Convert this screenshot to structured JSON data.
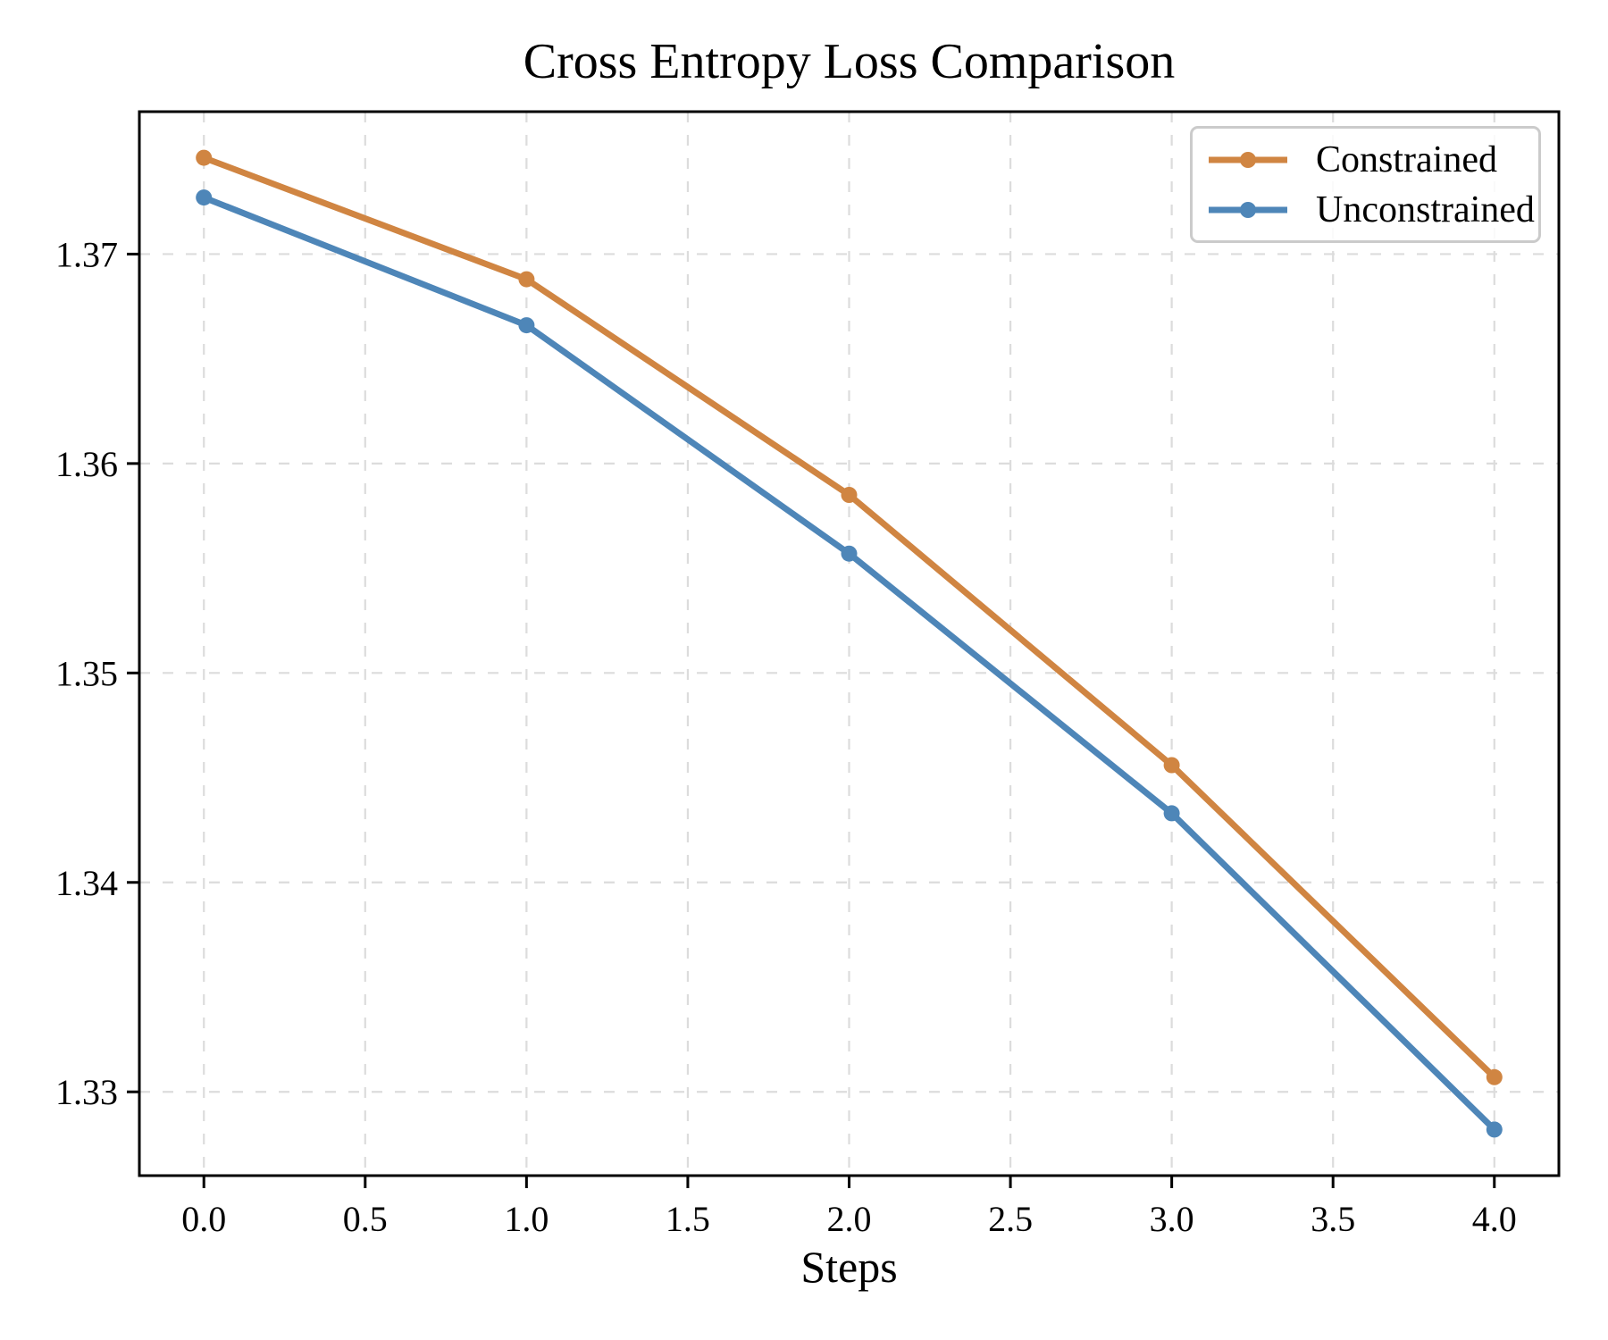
{
  "figure": {
    "background": "#FFFFFF",
    "axis_color": "#000000"
  },
  "chart_data": {
    "type": "line",
    "title": "Cross Entropy Loss Comparison",
    "xlabel": "Steps",
    "ylabel": "",
    "x": [
      0,
      1,
      2,
      3,
      4
    ],
    "series": [
      {
        "name": "Constrained",
        "color": "#D08542",
        "marker": "circle",
        "values": [
          1.3746,
          1.3688,
          1.3585,
          1.3456,
          1.3307
        ]
      },
      {
        "name": "Unconstrained",
        "color": "#4E86B8",
        "marker": "circle",
        "values": [
          1.3727,
          1.3666,
          1.3557,
          1.3433,
          1.3282
        ]
      }
    ],
    "xlim": [
      -0.2,
      4.2
    ],
    "ylim": [
      1.326,
      1.3768
    ],
    "xticks": [
      0,
      0.5,
      1,
      1.5,
      2,
      2.5,
      3,
      3.5,
      4
    ],
    "yticks": [
      1.33,
      1.34,
      1.35,
      1.36,
      1.37
    ],
    "xtick_decimals": 1,
    "ytick_decimals": 2,
    "grid": {
      "on": true,
      "style": "dashed",
      "color": "#DCDCDC"
    },
    "legend": {
      "position": "upper right"
    }
  }
}
